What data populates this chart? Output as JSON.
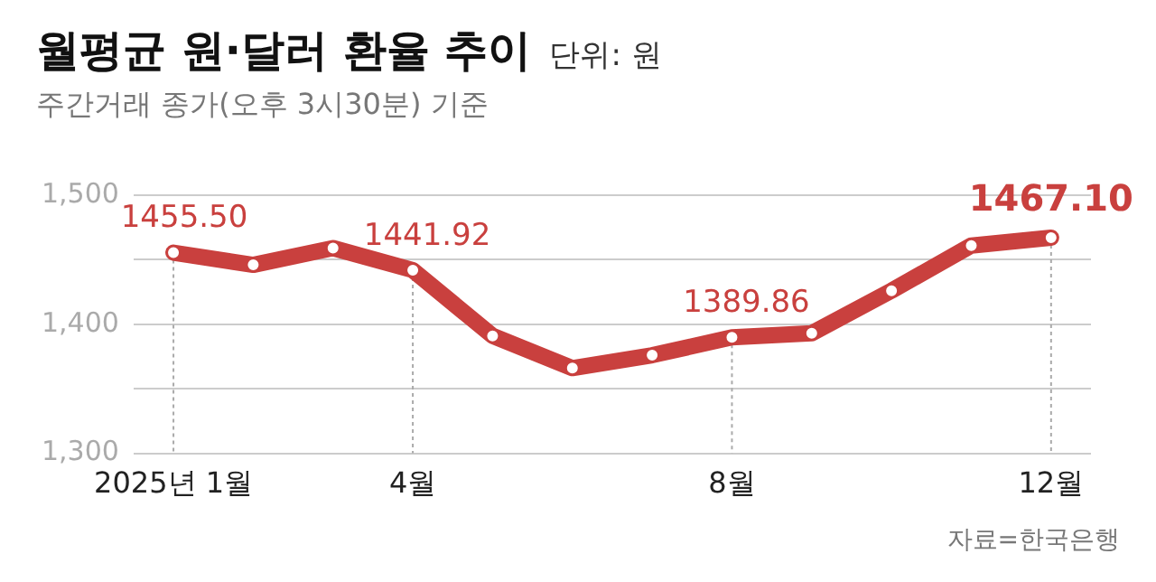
{
  "chart_data": {
    "type": "line",
    "title": "월평균 원·달러 환율 추이",
    "subtitle": "주간거래 종가(오후 3시30분) 기준",
    "annotations": [
      "단위: 원",
      "자료=한국은행"
    ],
    "categories": [
      "2025년 1월",
      null,
      null,
      "4월",
      null,
      null,
      null,
      "8월",
      null,
      null,
      null,
      "12월"
    ],
    "series": [
      {
        "color": "#c9403e",
        "values": [
          1455.5,
          1446,
          1459,
          1441.92,
          1391,
          1366,
          1376,
          1389.86,
          1393,
          1426,
          1461,
          1467.1
        ],
        "value_labels": [
          "1455.50",
          null,
          null,
          "1441.92",
          null,
          null,
          null,
          "1389.86",
          null,
          null,
          null,
          "1467.10"
        ]
      }
    ],
    "ylim": [
      1300,
      1500
    ],
    "yticks": [
      {
        "value": 1300,
        "label": "1,300"
      },
      {
        "value": 1350,
        "label": null
      },
      {
        "value": 1400,
        "label": "1,400"
      },
      {
        "value": 1450,
        "label": null
      },
      {
        "value": 1500,
        "label": "1,500"
      }
    ],
    "grid": true,
    "legend": false,
    "marker": "circle",
    "line_style": "solid"
  }
}
